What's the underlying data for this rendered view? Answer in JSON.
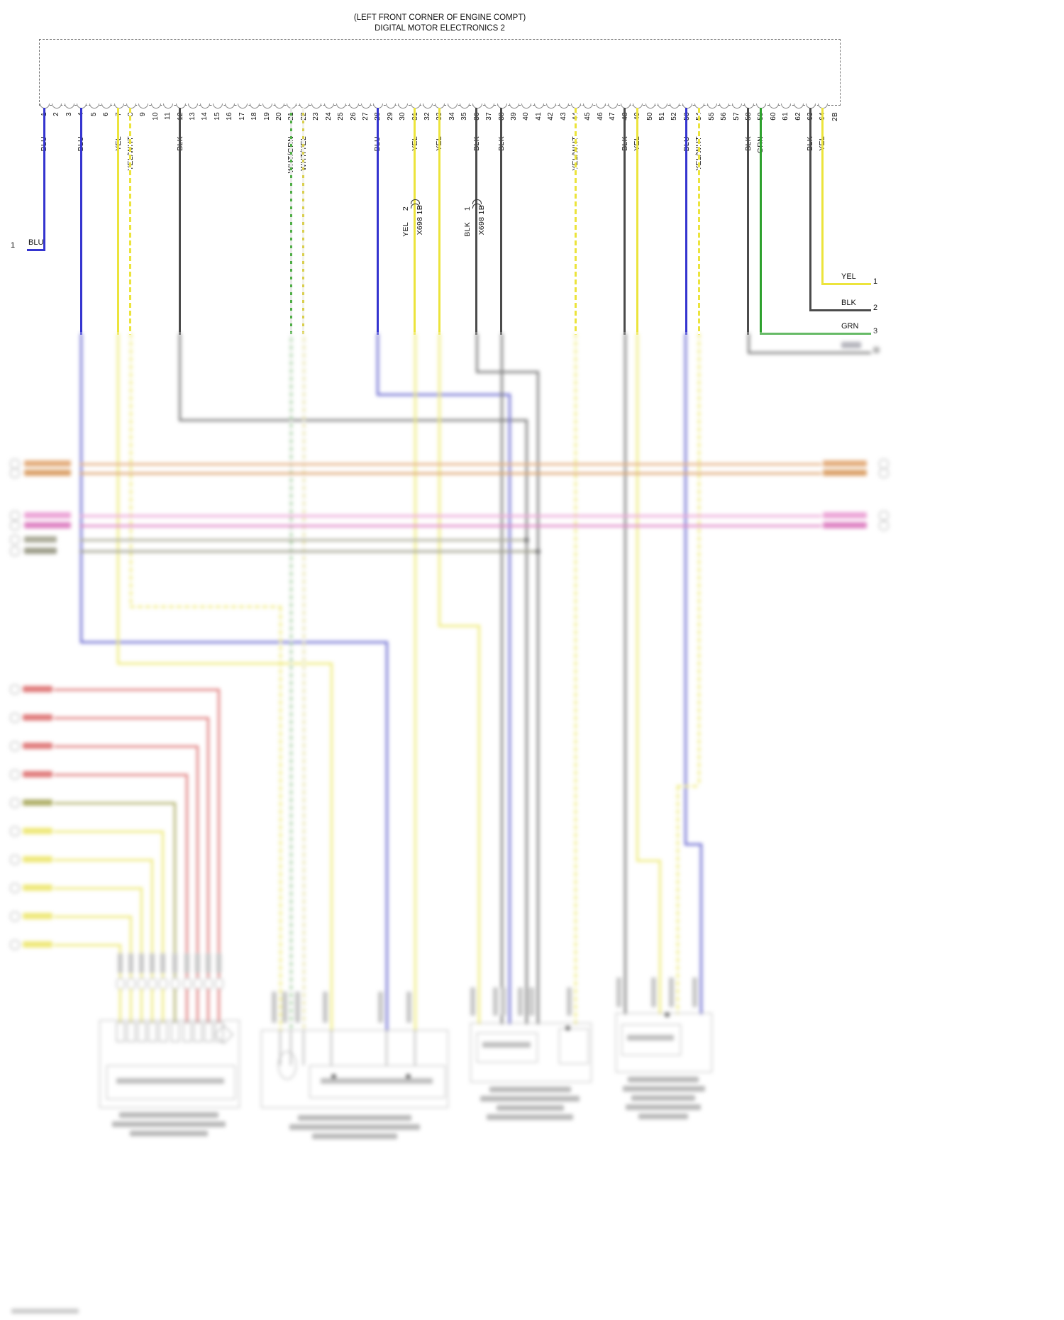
{
  "title": {
    "location_line": "(LEFT FRONT CORNER OF ENGINE COMPT)",
    "name_line": "DIGITAL MOTOR ELECTRONICS 2"
  },
  "connector": {
    "pins": [
      "1",
      "2",
      "3",
      "4",
      "5",
      "6",
      "7",
      "8",
      "9",
      "10",
      "11",
      "12",
      "13",
      "14",
      "15",
      "16",
      "17",
      "18",
      "19",
      "20",
      "21",
      "22",
      "23",
      "24",
      "25",
      "26",
      "27",
      "28",
      "29",
      "30",
      "31",
      "32",
      "33",
      "34",
      "35",
      "36",
      "37",
      "38",
      "39",
      "40",
      "41",
      "42",
      "43",
      "44",
      "45",
      "46",
      "47",
      "48",
      "49",
      "50",
      "51",
      "52",
      "53",
      "54",
      "55",
      "56",
      "57",
      "58",
      "59",
      "60",
      "61",
      "62",
      "63",
      "64"
    ],
    "extra_label": "2B"
  },
  "colors": {
    "BLU": "#3434cf",
    "YEL": "#ece43c",
    "BLK": "#4b4b4b",
    "GRN": "#2ea12e",
    "YEL/WHT": [
      "#ece43c",
      "#ffffff"
    ],
    "WHT/GRN": [
      "#e9e9e9",
      "#4fae46"
    ],
    "WHT/YEL": [
      "#f2f2ec",
      "#d9cf4e"
    ]
  },
  "wires": [
    {
      "pin": 1,
      "color": "BLU"
    },
    {
      "pin": 4,
      "color": "BLU"
    },
    {
      "pin": 7,
      "color": "YEL"
    },
    {
      "pin": 8,
      "color": "YEL/WHT"
    },
    {
      "pin": 12,
      "color": "BLK"
    },
    {
      "pin": 21,
      "color": "WHT/GRN"
    },
    {
      "pin": 22,
      "color": "WHT/YEL"
    },
    {
      "pin": 28,
      "color": "BLU"
    },
    {
      "pin": 31,
      "color": "YEL"
    },
    {
      "pin": 33,
      "color": "YEL"
    },
    {
      "pin": 36,
      "color": "BLK"
    },
    {
      "pin": 38,
      "color": "BLK"
    },
    {
      "pin": 44,
      "color": "YEL/WHT"
    },
    {
      "pin": 48,
      "color": "BLK"
    },
    {
      "pin": 49,
      "color": "YEL"
    },
    {
      "pin": 53,
      "color": "BLU"
    },
    {
      "pin": 54,
      "color": "YEL/WHT"
    },
    {
      "pin": 58,
      "color": "BLK"
    },
    {
      "pin": 59,
      "color": "GRN"
    },
    {
      "pin": 63,
      "color": "BLK"
    },
    {
      "pin": 64,
      "color": "YEL"
    }
  ],
  "inline_connectors": [
    {
      "wire_pin": 31,
      "wire_color_label": "YEL",
      "terminal": "2",
      "name": "X698 1B"
    },
    {
      "wire_pin": 36,
      "wire_color_label": "BLK",
      "terminal": "1",
      "name": "X698 1B"
    }
  ],
  "left_terminal": {
    "number": "1",
    "label": "BLU",
    "from_pin": 1
  },
  "right_terminals": [
    {
      "number": "1",
      "label": "YEL",
      "from_pin": 64
    },
    {
      "number": "2",
      "label": "BLK",
      "from_pin": 63
    },
    {
      "number": "3",
      "label": "GRN",
      "from_pin": 59
    }
  ]
}
